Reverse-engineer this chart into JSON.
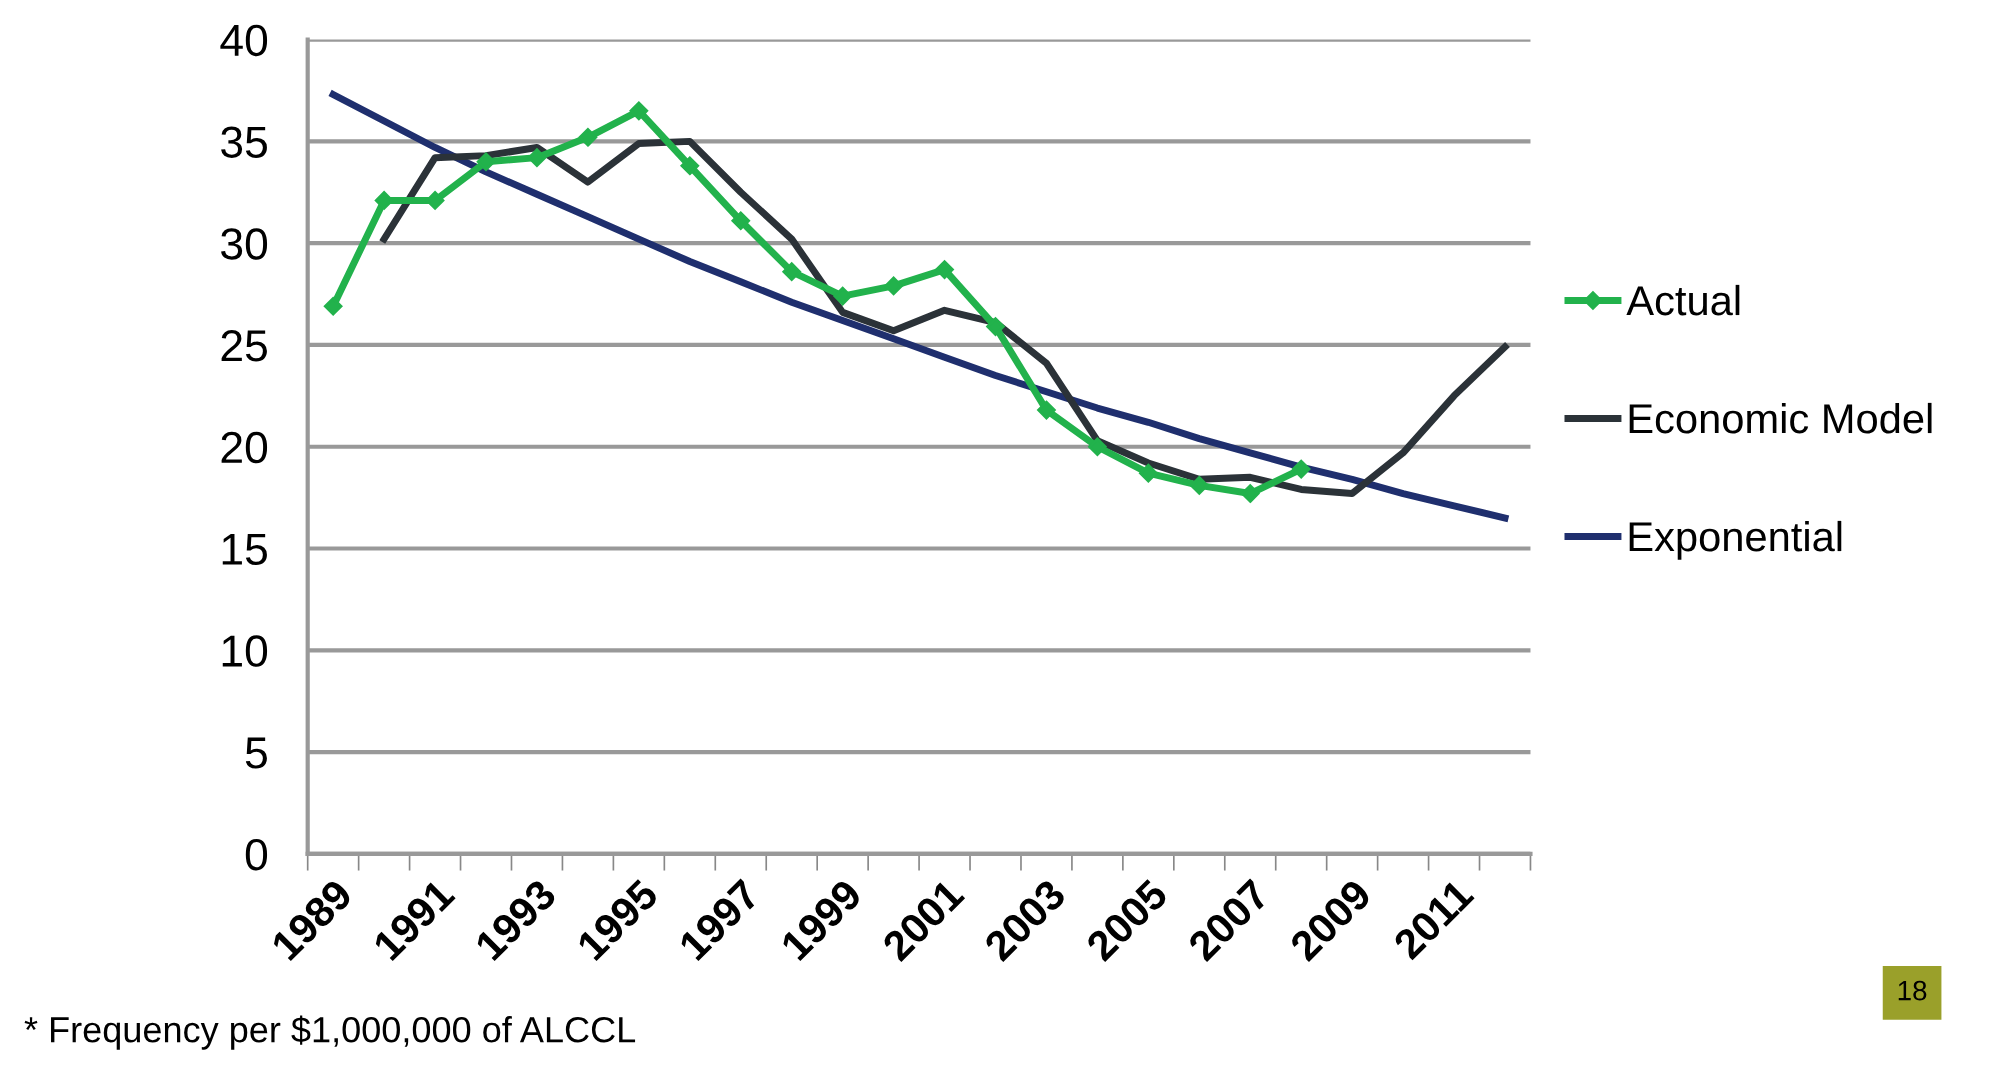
{
  "chart_data": {
    "type": "line",
    "categories": [
      "1989",
      null,
      "1991",
      null,
      "1993",
      null,
      "1995",
      null,
      "1997",
      null,
      "1999",
      null,
      "2001",
      null,
      "2003",
      null,
      "2005",
      null,
      "2007",
      null,
      "2009",
      null,
      "2011",
      null
    ],
    "series": [
      {
        "name": "Actual",
        "color": "#22b24c",
        "marker": "diamond",
        "values": [
          26.9,
          32.1,
          32.1,
          34.0,
          34.2,
          35.2,
          36.5,
          33.8,
          31.1,
          28.6,
          27.4,
          27.9,
          28.7,
          25.9,
          21.8,
          20.0,
          18.7,
          18.1,
          17.7,
          18.9,
          null,
          null,
          null,
          null
        ]
      },
      {
        "name": "Economic Model",
        "color": "#2b3238",
        "marker": "none",
        "values": [
          null,
          30.2,
          34.2,
          34.3,
          34.7,
          33.0,
          34.9,
          35.0,
          32.5,
          30.2,
          26.6,
          25.7,
          26.7,
          26.1,
          24.1,
          20.3,
          19.2,
          18.4,
          18.5,
          17.9,
          17.7,
          19.7,
          22.5,
          24.9
        ]
      },
      {
        "name": "Exponential",
        "color": "#1f2f6e",
        "marker": "none",
        "values": [
          37.3,
          36.0,
          34.7,
          33.5,
          32.4,
          31.3,
          30.2,
          29.1,
          28.1,
          27.1,
          26.2,
          25.3,
          24.4,
          23.5,
          22.7,
          21.9,
          21.2,
          20.4,
          19.7,
          19.0,
          18.4,
          17.7,
          17.1,
          16.5
        ]
      }
    ],
    "ylim": [
      0,
      40
    ],
    "yticks": [
      0,
      5,
      10,
      15,
      20,
      25,
      30,
      35,
      40
    ],
    "grid": "y",
    "legend": "right",
    "line_style": "solid",
    "annotations": [
      "* Frequency per $1,000,000 of ALCCL",
      "18"
    ]
  }
}
